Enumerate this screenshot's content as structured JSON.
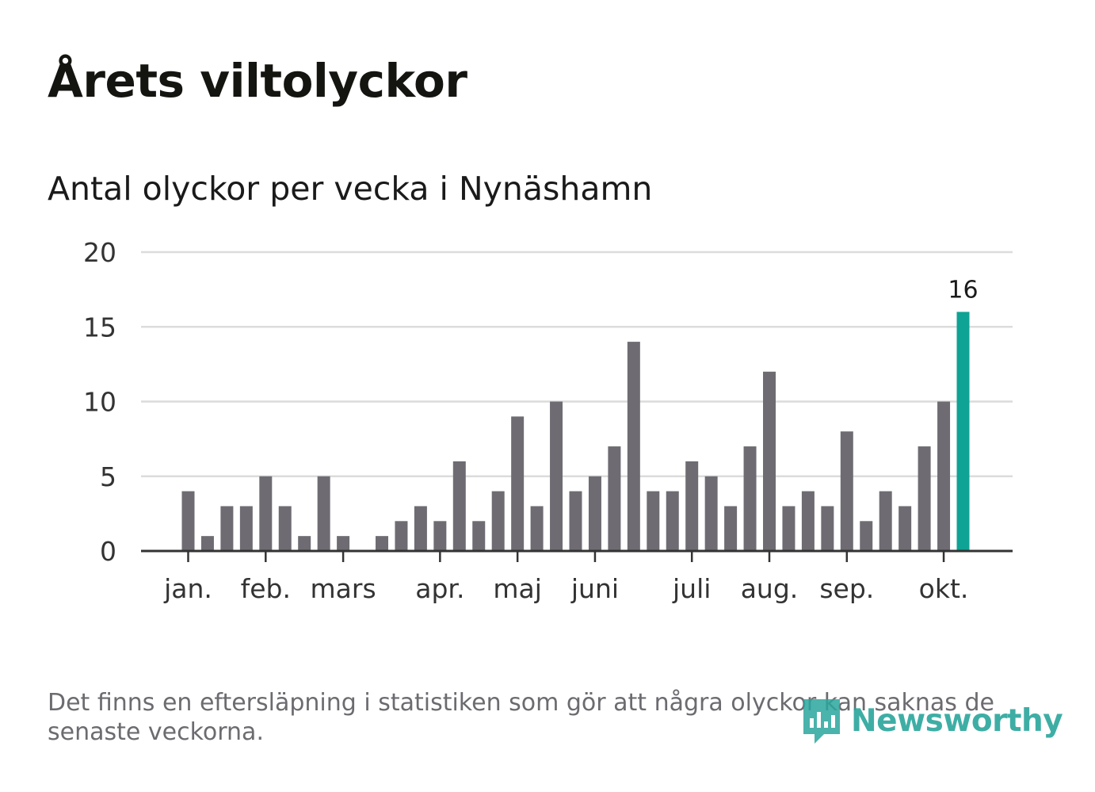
{
  "title": "Årets viltolyckor",
  "subtitle": "Antal olyckor per vecka i Nynäshamn",
  "footnote": "Det finns en eftersläpning i statistiken som gör att några olyckor kan saknas de senaste veckorna.",
  "brand": {
    "name": "Newsworthy",
    "icon": "newsworthy-logo-icon",
    "color": "#2aa69c"
  },
  "colors": {
    "bar": "#6e6c72",
    "highlight": "#0ea394",
    "grid": "#dcdcdc",
    "axis": "#333333"
  },
  "chart_data": {
    "type": "bar",
    "ylim": [
      0,
      20
    ],
    "yticks": [
      0,
      5,
      10,
      15,
      20
    ],
    "values": [
      4,
      1,
      3,
      3,
      5,
      3,
      1,
      5,
      1,
      0,
      1,
      2,
      3,
      2,
      6,
      2,
      4,
      9,
      3,
      10,
      4,
      5,
      7,
      14,
      4,
      4,
      6,
      5,
      3,
      7,
      12,
      3,
      4,
      3,
      8,
      2,
      4,
      3,
      7,
      10,
      16
    ],
    "highlight_index": 40,
    "highlight_label": "16",
    "months": [
      {
        "label": "jan.",
        "week": 0
      },
      {
        "label": "feb.",
        "week": 4
      },
      {
        "label": "mars",
        "week": 8
      },
      {
        "label": "apr.",
        "week": 13
      },
      {
        "label": "maj",
        "week": 17
      },
      {
        "label": "juni",
        "week": 21
      },
      {
        "label": "juli",
        "week": 26
      },
      {
        "label": "aug.",
        "week": 30
      },
      {
        "label": "sep.",
        "week": 34
      },
      {
        "label": "okt.",
        "week": 39
      }
    ]
  }
}
